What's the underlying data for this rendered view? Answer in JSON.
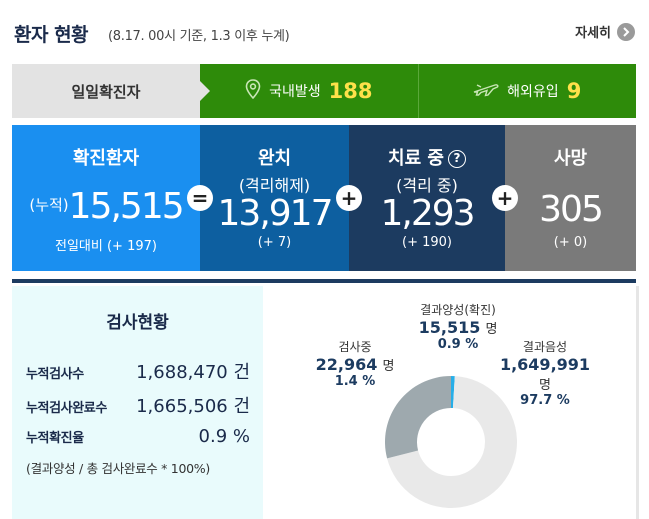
{
  "header": {
    "title": "환자 현황",
    "subtitle": "(8.17. 00시 기준, 1.3 이후 누계)",
    "more_label": "자세히"
  },
  "daily": {
    "label": "일일확진자",
    "domestic_label": "국내발생",
    "domestic_value": "188",
    "overseas_label": "해외유입",
    "overseas_value": "9"
  },
  "stats": {
    "confirmed": {
      "title": "확진환자",
      "prefix": "(누적)",
      "value": "15,515",
      "delta": "전일대비 (+ 197)"
    },
    "released": {
      "title": "완치",
      "sub": "(격리해제)",
      "value": "13,917",
      "delta": "(+ 7)"
    },
    "treatment": {
      "title": "치료 중",
      "help": "?",
      "sub": "(격리 중)",
      "value": "1,293",
      "delta": "(+ 190)"
    },
    "deceased": {
      "title": "사망",
      "value": "305",
      "delta": "(+ 0)"
    },
    "op_equals": "=",
    "op_plus": "+"
  },
  "tests": {
    "title": "검사현황",
    "rows": [
      {
        "label": "누적검사수",
        "value": "1,688,470 건"
      },
      {
        "label": "누적검사완료수",
        "value": "1,665,506 건"
      },
      {
        "label": "누적확진율",
        "value": "0.9 %"
      }
    ],
    "note": "(결과양성 / 총 검사완료수 * 100%)"
  },
  "donut": {
    "positive": {
      "title": "결과양성(확진)",
      "value": "15,515",
      "unit": "명",
      "pct": "0.9 %"
    },
    "testing": {
      "title": "검사중",
      "value": "22,964",
      "unit": "명",
      "pct": "1.4 %"
    },
    "negative": {
      "title": "결과음성",
      "value": "1,649,991",
      "unit": "명",
      "pct": "97.7 %"
    }
  },
  "chart_data": {
    "type": "pie",
    "categories": [
      "결과양성(확진)",
      "검사중",
      "결과음성"
    ],
    "values": [
      15515,
      22964,
      1649991
    ],
    "percent": [
      0.9,
      1.4,
      97.7
    ],
    "colors": [
      "#27aee8",
      "#9ea9ae",
      "#e9e9e9"
    ]
  },
  "colors": {
    "daily_green": "#2e8b0a",
    "daily_value": "#ffe14a",
    "confirmed_blue": "#1a8ff0",
    "released_blue": "#0d5fa0",
    "treatment_navy": "#1c3b60",
    "deceased_gray": "#7a7a7a"
  },
  "icons": {
    "more": "chevron-right-icon",
    "domestic": "location-pin-icon",
    "overseas": "airplane-icon",
    "help": "question-circle-icon"
  }
}
